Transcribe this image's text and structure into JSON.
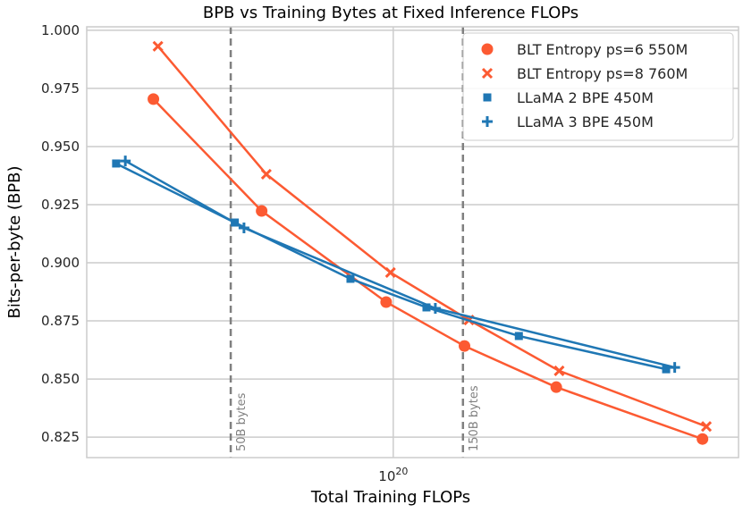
{
  "chart_data": {
    "type": "line",
    "title": "BPB vs Training Bytes at Fixed Inference FLOPs",
    "xlabel": "Total Training FLOPs",
    "ylabel": "Bits-per-byte (BPB)",
    "xscale": "log",
    "xlim": [
      2.35e+19,
      5.11e+20
    ],
    "ylim": [
      0.8162,
      1.0015
    ],
    "x_ticks": [
      {
        "value": 1e+20,
        "label_base": "10",
        "label_exp": "20"
      }
    ],
    "y_ticks": [
      1.0,
      0.975,
      0.95,
      0.925,
      0.9,
      0.875,
      0.85,
      0.825
    ],
    "y_tick_labels": [
      "1.000",
      "0.975",
      "0.950",
      "0.925",
      "0.900",
      "0.875",
      "0.850",
      "0.825"
    ],
    "grid": true,
    "legend_placement": "top-right",
    "reference_lines": [
      {
        "x": 4.64e+19,
        "label": "50B bytes",
        "color": "#808080",
        "style": "dashed"
      },
      {
        "x": 1.39e+20,
        "label": "150B bytes",
        "color": "#808080",
        "style": "dashed"
      }
    ],
    "series": [
      {
        "name": "BLT Entropy ps=6 550M",
        "color": "#fc5a32",
        "marker": "circle",
        "x": [
          3.22e+19,
          5.37e+19,
          9.67e+19,
          1.4e+20,
          2.16e+20,
          4.31e+20
        ],
        "y": [
          0.9704,
          0.9223,
          0.8831,
          0.8642,
          0.8465,
          0.8242
        ]
      },
      {
        "name": "BLT Entropy ps=8 760M",
        "color": "#fc5a32",
        "marker": "x",
        "x": [
          3.29e+19,
          5.49e+19,
          9.87e+19,
          1.43e+20,
          2.19e+20,
          4.39e+20
        ],
        "y": [
          0.9931,
          0.9381,
          0.8958,
          0.8754,
          0.8535,
          0.8296
        ]
      },
      {
        "name": "LLaMA 2 BPE 450M",
        "color": "#1f77b4",
        "marker": "square",
        "x": [
          2.7e+19,
          4.73e+19,
          8.17e+19,
          1.17e+20,
          1.81e+20,
          3.63e+20
        ],
        "y": [
          0.9427,
          0.9173,
          0.8931,
          0.8808,
          0.8685,
          0.8542
        ]
      },
      {
        "name": "LLaMA 3 BPE 450M",
        "color": "#1f77b4",
        "marker": "plus",
        "x": [
          2.82e+19,
          4.94e+19,
          1.22e+20,
          3.78e+20
        ],
        "y": [
          0.9438,
          0.915,
          0.8804,
          0.855
        ]
      }
    ]
  }
}
